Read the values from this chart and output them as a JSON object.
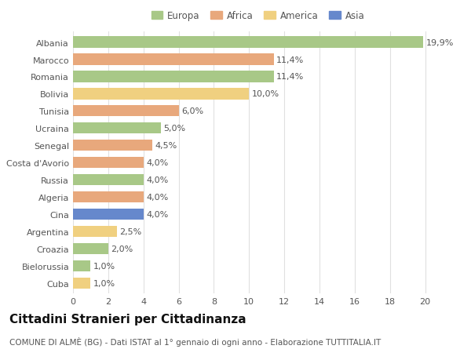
{
  "countries": [
    "Albania",
    "Marocco",
    "Romania",
    "Bolivia",
    "Tunisia",
    "Ucraina",
    "Senegal",
    "Costa d'Avorio",
    "Russia",
    "Algeria",
    "Cina",
    "Argentina",
    "Croazia",
    "Bielorussia",
    "Cuba"
  ],
  "values": [
    19.9,
    11.4,
    11.4,
    10.0,
    6.0,
    5.0,
    4.5,
    4.0,
    4.0,
    4.0,
    4.0,
    2.5,
    2.0,
    1.0,
    1.0
  ],
  "labels": [
    "19,9%",
    "11,4%",
    "11,4%",
    "10,0%",
    "6,0%",
    "5,0%",
    "4,5%",
    "4,0%",
    "4,0%",
    "4,0%",
    "4,0%",
    "2,5%",
    "2,0%",
    "1,0%",
    "1,0%"
  ],
  "continents": [
    "Europa",
    "Africa",
    "Europa",
    "America",
    "Africa",
    "Europa",
    "Africa",
    "Africa",
    "Europa",
    "Africa",
    "Asia",
    "America",
    "Europa",
    "Europa",
    "America"
  ],
  "colors": {
    "Europa": "#a8c887",
    "Africa": "#e8a87c",
    "America": "#f0d080",
    "Asia": "#6688cc"
  },
  "title": "Cittadini Stranieri per Cittadinanza",
  "subtitle": "COMUNE DI ALMÈ (BG) - Dati ISTAT al 1° gennaio di ogni anno - Elaborazione TUTTITALIA.IT",
  "xlim": [
    0,
    21
  ],
  "xticks": [
    0,
    2,
    4,
    6,
    8,
    10,
    12,
    14,
    16,
    18,
    20
  ],
  "background_color": "#ffffff",
  "grid_color": "#e0e0e0",
  "bar_height": 0.65,
  "label_fontsize": 8,
  "tick_fontsize": 8,
  "title_fontsize": 11,
  "subtitle_fontsize": 7.5
}
